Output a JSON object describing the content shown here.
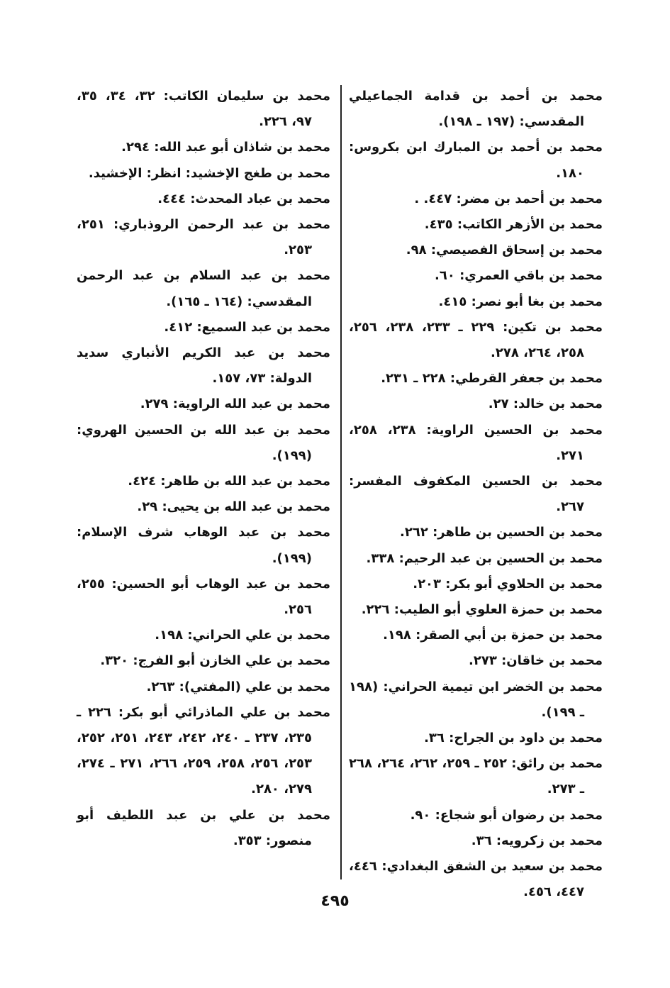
{
  "right_column": [
    "محمد بن أحمد بن قدامة الجماعيلي المقدسي: (١٩٧ ـ ١٩٨).",
    "محمد بن أحمد بن المبارك ابن بكروس: ١٨٠.",
    "محمد بن أحمد بن مضر: ٤٤٧. .",
    "محمد بن الأزهر الكاتب: ٤٣٥.",
    "محمد بن إسحاق الفصيصي: ٩٨.",
    "محمد بن باقي العمري: ٦٠.",
    "محمد بن بغا أبو نصر: ٤١٥.",
    "محمد بن تكين: ٢٢٩ ـ ٢٣٣، ٢٣٨، ٢٥٦، ٢٥٨، ٢٦٤، ٢٧٨.",
    "محمد بن جعفر القرطي: ٢٢٨ ـ ٢٣١.",
    "محمد بن خالد: ٢٧.",
    "محمد بن الحسين الراوية: ٢٣٨، ٢٥٨، ٢٧١.",
    "محمد بن الحسين المكفوف المفسر: ٢٦٧.",
    "محمد بن الحسين بن طاهر: ٢٦٢.",
    "محمد بن الحسين بن عبد الرحيم: ٣٣٨.",
    "محمد بن الحلاوي أبو بكر: ٢٠٣.",
    "محمد بن حمزة العلوي أبو الطيب: ٢٢٦.",
    "محمد بن حمزة بن أبي الصقر: ١٩٨.",
    "محمد بن خاقان: ٢٧٣.",
    "محمد بن الخضر ابن تيمية الحراني: (١٩٨ ـ ١٩٩).",
    "محمد بن داود بن الجراح: ٣٦.",
    "محمد بن رائق: ٢٥٢ ـ ٢٥٩، ٢٦٢، ٢٦٤، ٢٦٨ ـ ٢٧٣.",
    "محمد بن رضوان أبو شجاع: ٩٠.",
    "محمد بن زكرويه: ٣٦.",
    "محمد بن سعيد بن الشفق البغدادي: ٤٤٦، ٤٤٧، ٤٥٦."
  ],
  "left_column": [
    "محمد بن سليمان الكاتب: ٣٢، ٣٤، ٣٥، ٩٧، ٢٢٦.",
    "محمد بن شاذان أبو عبد الله: ٢٩٤.",
    "محمد بن طغج الإخشيد: انظر: الإخشيد.",
    "محمد بن عباد المحدث: ٤٤٤.",
    "محمد بن عبد الرحمن الروذباري: ٢٥١، ٢٥٣.",
    "محمد بن عبد السلام بن عبد الرحمن المقدسي: (١٦٤ ـ ١٦٥).",
    "محمد بن عبد السميع: ٤١٢.",
    "محمد بن عبد الكريم الأنباري سديد الدولة: ٧٣، ١٥٧.",
    "محمد بن عبد الله الراوية: ٢٧٩.",
    "محمد بن عبد الله بن الحسين الهروي: (١٩٩).",
    "محمد بن عبد الله بن طاهر: ٤٢٤.",
    "محمد بن عبد الله بن يحيى: ٢٩.",
    "محمد بن عبد الوهاب شرف الإسلام: (١٩٩).",
    "محمد بن عبد الوهاب أبو الحسين: ٢٥٥، ٢٥٦.",
    "محمد بن علي الحراني: ١٩٨.",
    "محمد بن علي الخازن أبو الفرج: ٣٢٠.",
    "محمد بن علي (المفتي): ٢٦٣.",
    "محمد بن علي الماذرائي أبو بكر: ٢٢٦ ـ ٢٣٥، ٢٣٧ ـ ٢٤٠، ٢٤٢، ٢٤٣، ٢٥١، ٢٥٢، ٢٥٣، ٢٥٦، ٢٥٨، ٢٥٩، ٢٦٦، ٢٧١ ـ ٢٧٤، ٢٧٩، ٢٨٠.",
    "محمد بن علي بن عبد اللطيف أبو منصور: ٣٥٣."
  ],
  "page_number": "٤٩٥"
}
